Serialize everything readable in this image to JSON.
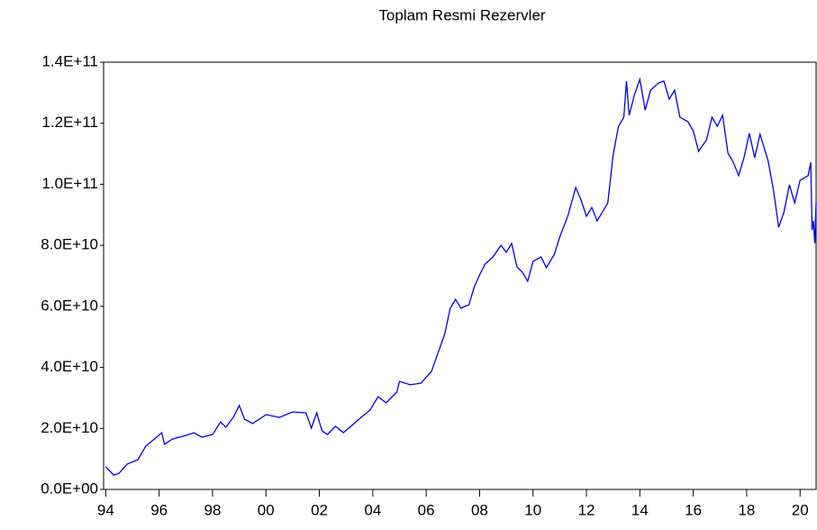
{
  "chart_data": {
    "type": "line",
    "title": "Toplam Resmi Rezervler",
    "x": [
      1994.0,
      1994.3,
      1994.5,
      1994.8,
      1995.2,
      1995.5,
      1995.9,
      1996.1,
      1996.2,
      1996.5,
      1997.0,
      1997.3,
      1997.6,
      1998.0,
      1998.3,
      1998.5,
      1998.8,
      1999.0,
      1999.2,
      1999.5,
      2000.0,
      2000.5,
      2001.0,
      2001.5,
      2001.7,
      2001.9,
      2002.1,
      2002.3,
      2002.6,
      2002.9,
      2003.3,
      2003.6,
      2003.9,
      2004.2,
      2004.5,
      2004.9,
      2005.0,
      2005.4,
      2005.8,
      2006.2,
      2006.4,
      2006.7,
      2006.9,
      2007.1,
      2007.3,
      2007.6,
      2007.8,
      2008.0,
      2008.2,
      2008.5,
      2008.8,
      2009.0,
      2009.2,
      2009.4,
      2009.6,
      2009.8,
      2010.0,
      2010.3,
      2010.5,
      2010.8,
      2011.0,
      2011.3,
      2011.6,
      2011.8,
      2012.0,
      2012.2,
      2012.4,
      2012.7,
      2012.8,
      2013.0,
      2013.2,
      2013.4,
      2013.5,
      2013.6,
      2013.8,
      2014.0,
      2014.2,
      2014.4,
      2014.7,
      2014.9,
      2015.1,
      2015.3,
      2015.5,
      2015.8,
      2016.0,
      2016.2,
      2016.5,
      2016.7,
      2016.9,
      2017.1,
      2017.3,
      2017.5,
      2017.7,
      2017.9,
      2018.1,
      2018.3,
      2018.5,
      2018.8,
      2019.0,
      2019.2,
      2019.4,
      2019.6,
      2019.8,
      2020.0,
      2020.3,
      2020.4,
      2020.45,
      2020.5,
      2020.55,
      2020.6
    ],
    "series": [
      {
        "color": "#0000ee",
        "values": [
          7400000000.0,
          4700000000.0,
          5300000000.0,
          8300000000.0,
          9700000000.0,
          14200000000.0,
          17100000000.0,
          18600000000.0,
          14800000000.0,
          16500000000.0,
          17700000000.0,
          18600000000.0,
          17100000000.0,
          18000000000.0,
          22100000000.0,
          20400000000.0,
          23900000000.0,
          27500000000.0,
          23000000000.0,
          21600000000.0,
          24500000000.0,
          23600000000.0,
          25400000000.0,
          25100000000.0,
          20100000000.0,
          25100000000.0,
          19200000000.0,
          18000000000.0,
          20700000000.0,
          18600000000.0,
          21600000000.0,
          23900000000.0,
          26000000000.0,
          30400000000.0,
          28400000000.0,
          31900000000.0,
          35400000000.0,
          34300000000.0,
          34800000000.0,
          38700000000.0,
          43700000000.0,
          51100000000.0,
          59400000000.0,
          62300000000.0,
          59400000000.0,
          60500000000.0,
          66400000000.0,
          70300000000.0,
          73800000000.0,
          76200000000.0,
          80000000000.0,
          77700000000.0,
          80600000000.0,
          72900000000.0,
          71200000000.0,
          68200000000.0,
          74700000000.0,
          76200000000.0,
          72700000000.0,
          77100000000.0,
          82700000000.0,
          89500000000.0,
          98900000000.0,
          94800000000.0,
          89500000000.0,
          92400000000.0,
          88000000000.0,
          92400000000.0,
          93900000000.0,
          109600000000.0,
          119000000000.0,
          122000000000.0,
          133800000000.0,
          122600000000.0,
          129400000000.0,
          134400000000.0,
          124300000000.0,
          130800000000.0,
          133200000000.0,
          133800000000.0,
          127900000000.0,
          130800000000.0,
          122000000000.0,
          120500000000.0,
          117500000000.0,
          110800000000.0,
          114600000000.0,
          122000000000.0,
          119000000000.0,
          122600000000.0,
          110200000000.0,
          107200000000.0,
          102800000000.0,
          108700000000.0,
          116700000000.0,
          108700000000.0,
          116400000000.0,
          107800000000.0,
          98300000000.0,
          85900000000.0,
          91000000000.0,
          99800000000.0,
          93900000000.0,
          101300000000.0,
          102800000000.0,
          107200000000.0,
          85000000000.0,
          88000000000.0,
          80600000000.0,
          93900000000.0
        ]
      }
    ],
    "xlim": [
      1993.92,
      2020.6
    ],
    "xticks": [
      {
        "value": 1994,
        "label": "94"
      },
      {
        "value": 1996,
        "label": "96"
      },
      {
        "value": 1998,
        "label": "98"
      },
      {
        "value": 2000,
        "label": "00"
      },
      {
        "value": 2002,
        "label": "02"
      },
      {
        "value": 2004,
        "label": "04"
      },
      {
        "value": 2006,
        "label": "06"
      },
      {
        "value": 2008,
        "label": "08"
      },
      {
        "value": 2010,
        "label": "10"
      },
      {
        "value": 2012,
        "label": "12"
      },
      {
        "value": 2014,
        "label": "14"
      },
      {
        "value": 2016,
        "label": "16"
      },
      {
        "value": 2018,
        "label": "18"
      },
      {
        "value": 2020,
        "label": "20"
      }
    ],
    "ylim": [
      0,
      140000000000
    ],
    "yticks": [
      {
        "value": 0,
        "label": "0.0E+00"
      },
      {
        "value": 20000000000,
        "label": "2.0E+10"
      },
      {
        "value": 40000000000,
        "label": "4.0E+10"
      },
      {
        "value": 60000000000,
        "label": "6.0E+10"
      },
      {
        "value": 80000000000,
        "label": "8.0E+10"
      },
      {
        "value": 100000000000,
        "label": "1.0E+11"
      },
      {
        "value": 120000000000,
        "label": "1.2E+11"
      },
      {
        "value": 140000000000,
        "label": "1.4E+11"
      }
    ]
  }
}
